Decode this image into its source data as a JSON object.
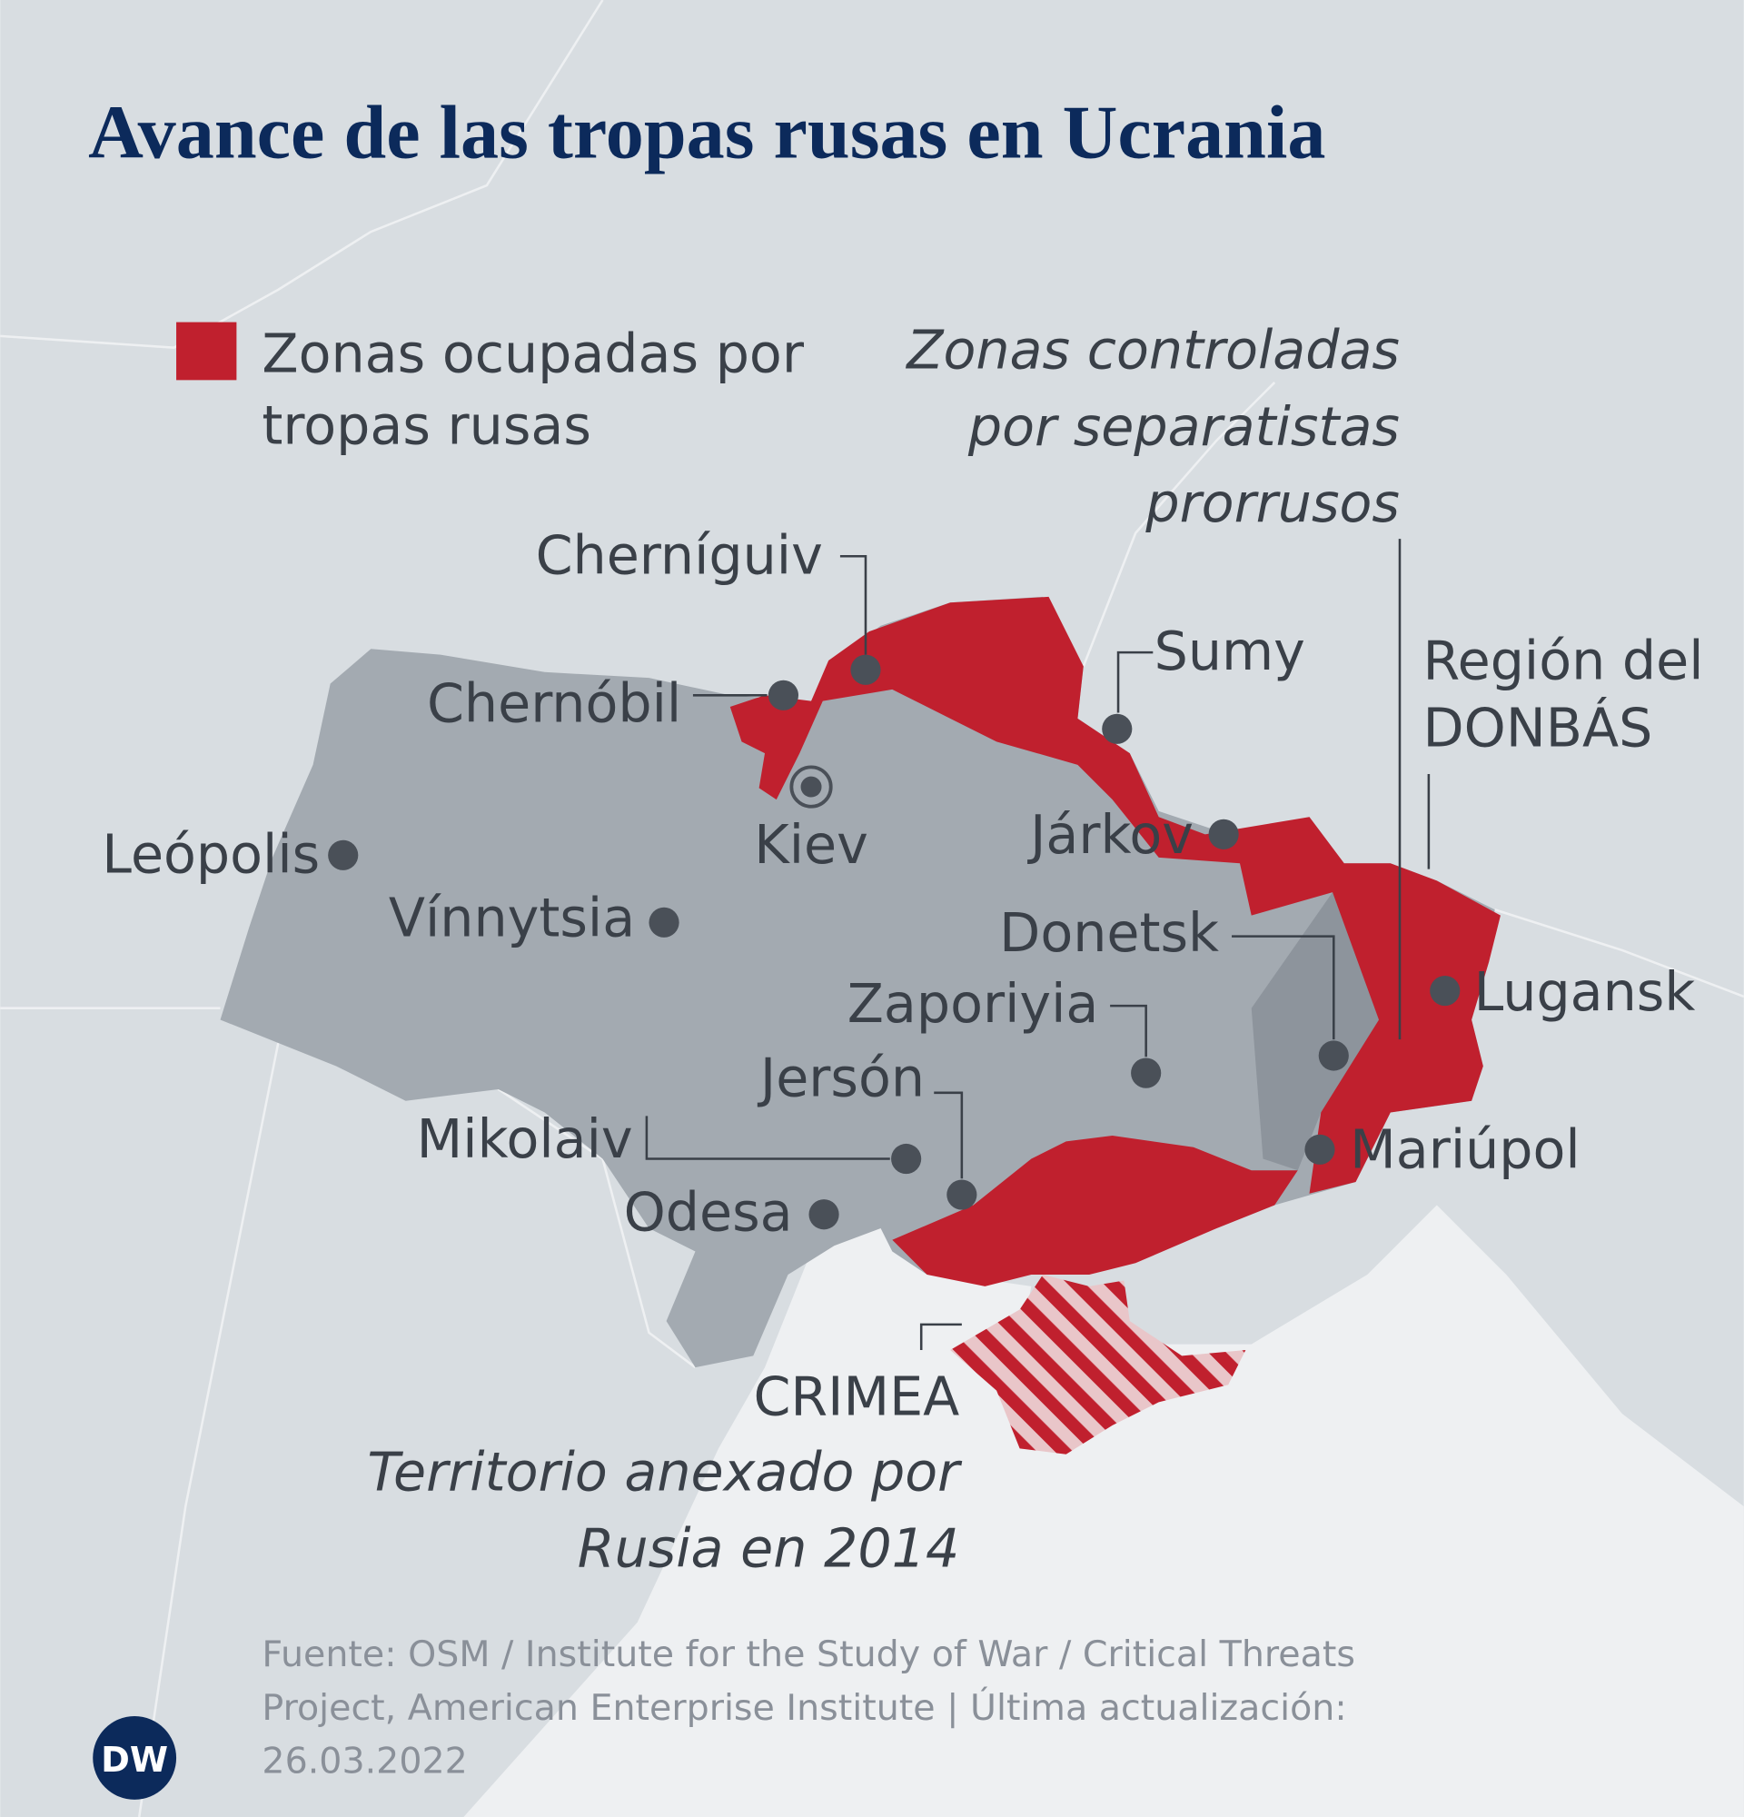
{
  "title": "Avance de las tropas rusas en Ucrania",
  "legend": {
    "occupied": [
      "Zonas ocupadas por",
      "tropas rusas"
    ]
  },
  "separatists": [
    "Zonas controladas",
    "por separatistas",
    "prorrusos"
  ],
  "donbas": [
    "Región del",
    "DONBÁS"
  ],
  "cities": [
    "Cherníguiv",
    "Chernóbil",
    "Kiev",
    "Leópolis",
    "Vínnytsia",
    "Sumy",
    "Járkov",
    "Donetsk",
    "Lugansk",
    "Zaporiyia",
    "Mariúpol",
    "Jersón",
    "Mikolaiv",
    "Odesa"
  ],
  "crimea": {
    "label": "CRIMEA",
    "note": [
      "Territorio anexado por",
      "Rusia en 2014"
    ]
  },
  "source": [
    "Fuente: OSM / Institute for the Study of War / Critical Threats",
    "Project, American Enterprise Institute | Última actualización:",
    "26.03.2022"
  ],
  "logo": "DW"
}
